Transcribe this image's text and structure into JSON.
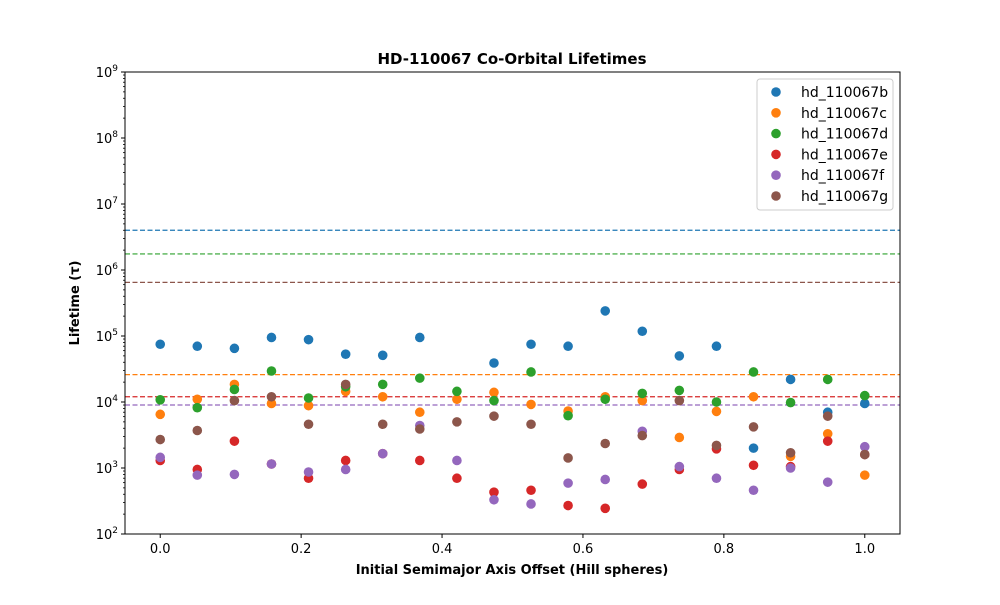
{
  "chart_data": {
    "type": "scatter",
    "title": "HD-110067 Co-Orbital Lifetimes",
    "xlabel": "Initial Semimajor Axis Offset (Hill spheres)",
    "ylabel": "Lifetime (τ)",
    "xlim": [
      -0.05,
      1.05
    ],
    "ylim": [
      100,
      1000000000
    ],
    "yscale": "log",
    "grid": false,
    "legend_position": "top-right",
    "x_ticks": [
      "0.0",
      "0.2",
      "0.4",
      "0.6",
      "0.8",
      "1.0"
    ],
    "x_tick_values": [
      0,
      0.2,
      0.4,
      0.6,
      0.8,
      1.0
    ],
    "y_ticks": [
      "10^2",
      "10^3",
      "10^4",
      "10^5",
      "10^6",
      "10^7",
      "10^8",
      "10^9"
    ],
    "y_tick_values": [
      100,
      1000,
      10000,
      100000,
      1000000,
      10000000,
      100000000,
      1000000000
    ],
    "x": [
      0.0,
      0.0526,
      0.1053,
      0.1579,
      0.2105,
      0.2632,
      0.3158,
      0.3684,
      0.4211,
      0.4737,
      0.5263,
      0.5789,
      0.6316,
      0.6842,
      0.7368,
      0.7895,
      0.8421,
      0.8947,
      0.9474,
      1.0
    ],
    "series": [
      {
        "name": "hd_110067b",
        "color": "#1f77b4",
        "reference_line": 4000000,
        "values": [
          75000,
          70000,
          65000,
          95000,
          88000,
          53000,
          51000,
          95000,
          null,
          39000,
          75000,
          70000,
          240000,
          118000,
          50000,
          70000,
          2000,
          22000,
          7000,
          9500
        ]
      },
      {
        "name": "hd_110067c",
        "color": "#ff7f0e",
        "reference_line": 26000,
        "values": [
          6500,
          11000,
          18500,
          9500,
          8800,
          14500,
          12000,
          7000,
          11000,
          14000,
          9200,
          7300,
          12000,
          10500,
          2900,
          7200,
          12000,
          1500,
          3300,
          780
        ]
      },
      {
        "name": "hd_110067d",
        "color": "#2ca02c",
        "reference_line": 1750000,
        "values": [
          10800,
          8200,
          15500,
          29500,
          11500,
          17000,
          18500,
          23000,
          14500,
          10500,
          28500,
          6200,
          11000,
          13500,
          15000,
          10000,
          28500,
          9800,
          22000,
          12500
        ]
      },
      {
        "name": "hd_110067e",
        "color": "#d62728",
        "reference_line": 12000,
        "values": [
          1300,
          950,
          2550,
          1150,
          700,
          1300,
          1650,
          1300,
          700,
          430,
          460,
          270,
          245,
          570,
          950,
          1950,
          1100,
          1050,
          2550,
          1600
        ]
      },
      {
        "name": "hd_110067f",
        "color": "#9467bd",
        "reference_line": 9000,
        "values": [
          1450,
          780,
          800,
          1150,
          870,
          950,
          1650,
          4400,
          1300,
          330,
          285,
          590,
          670,
          3600,
          1050,
          700,
          460,
          1000,
          610,
          2100
        ]
      },
      {
        "name": "hd_110067g",
        "color": "#8c564b",
        "reference_line": 650000,
        "values": [
          2700,
          3700,
          10500,
          12000,
          4600,
          18500,
          4600,
          3900,
          5000,
          6100,
          4600,
          1420,
          2350,
          3100,
          10500,
          2200,
          4200,
          1700,
          6100,
          1600
        ]
      }
    ]
  }
}
